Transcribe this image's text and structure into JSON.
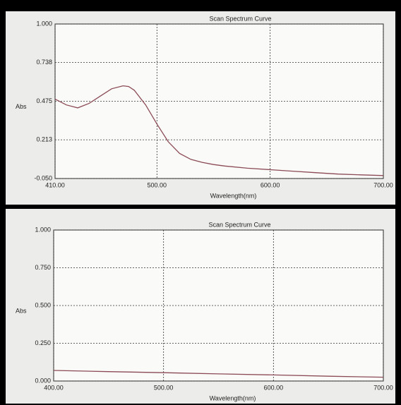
{
  "chart_data": [
    {
      "type": "line",
      "title": "Scan Spectrum Curve",
      "y_label": "Abs",
      "x_label": "Wavelength(nm)",
      "x": [
        410,
        420,
        430,
        440,
        450,
        460,
        470,
        475,
        480,
        490,
        500,
        510,
        520,
        530,
        540,
        550,
        560,
        580,
        600,
        620,
        640,
        650,
        660,
        680,
        700
      ],
      "values": [
        0.49,
        0.45,
        0.43,
        0.46,
        0.51,
        0.56,
        0.58,
        0.575,
        0.55,
        0.45,
        0.32,
        0.2,
        0.12,
        0.08,
        0.06,
        0.045,
        0.035,
        0.02,
        0.01,
        0.0,
        -0.01,
        -0.015,
        -0.02,
        -0.025,
        -0.03
      ],
      "color": "#8b4a55",
      "grid": true,
      "xlim": [
        410,
        700
      ],
      "xticks": [
        {
          "value": 410,
          "label": "410.00"
        },
        {
          "value": 500,
          "label": "500.00"
        },
        {
          "value": 600,
          "label": "600.00"
        },
        {
          "value": 700,
          "label": "700.00"
        }
      ],
      "ylim": [
        -0.05,
        1.0
      ],
      "yticks": [
        {
          "value": -0.05,
          "label": "-0.050"
        },
        {
          "value": 0.213,
          "label": "0.213"
        },
        {
          "value": 0.475,
          "label": "0.475"
        },
        {
          "value": 0.738,
          "label": "0.738"
        },
        {
          "value": 1.0,
          "label": "1.000"
        }
      ]
    },
    {
      "type": "line",
      "title": "Scan Spectrum Curve",
      "y_label": "Abs",
      "x_label": "Wavelength(nm)",
      "x": [
        400,
        450,
        500,
        550,
        600,
        650,
        700
      ],
      "values": [
        0.07,
        0.062,
        0.055,
        0.047,
        0.04,
        0.032,
        0.025
      ],
      "color": "#8b4a55",
      "grid": true,
      "xlim": [
        400,
        700
      ],
      "xticks": [
        {
          "value": 400,
          "label": "400.00"
        },
        {
          "value": 500,
          "label": "500.00"
        },
        {
          "value": 600,
          "label": "600.00"
        },
        {
          "value": 700,
          "label": "700.00"
        }
      ],
      "ylim": [
        0,
        1.0
      ],
      "yticks": [
        {
          "value": 0,
          "label": "0.000"
        },
        {
          "value": 0.25,
          "label": "0.250"
        },
        {
          "value": 0.5,
          "label": "0.500"
        },
        {
          "value": 0.75,
          "label": "0.750"
        },
        {
          "value": 1.0,
          "label": "1.000"
        }
      ]
    }
  ]
}
